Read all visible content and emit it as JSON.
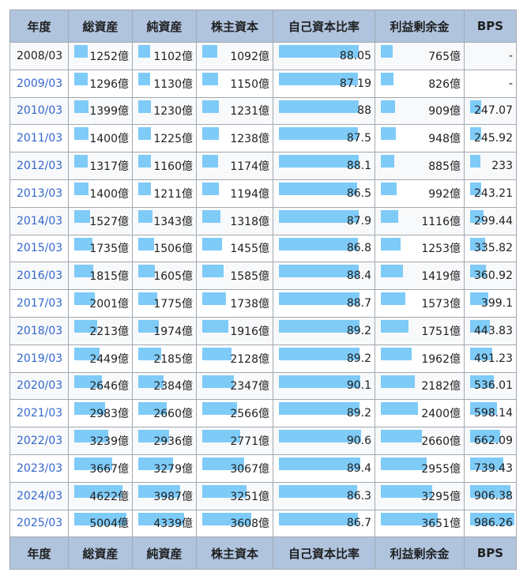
{
  "headers": [
    "年度",
    "総資産",
    "純資産",
    "株主資本",
    "自己資本比率",
    "利益剰余金",
    "BPS"
  ],
  "bar_color": "#7ecbf8",
  "header_bg": "#b0c4de",
  "rows": [
    {
      "year": "2008/03",
      "linked": false,
      "total_assets": "1252億",
      "net_assets": "1102億",
      "shareholders_equity": "1092億",
      "equity_ratio": "88.05",
      "retained_earnings": "765億",
      "bps": "-"
    },
    {
      "year": "2009/03",
      "linked": true,
      "total_assets": "1296億",
      "net_assets": "1130億",
      "shareholders_equity": "1150億",
      "equity_ratio": "87.19",
      "retained_earnings": "826億",
      "bps": "-"
    },
    {
      "year": "2010/03",
      "linked": true,
      "total_assets": "1399億",
      "net_assets": "1230億",
      "shareholders_equity": "1231億",
      "equity_ratio": "88",
      "retained_earnings": "909億",
      "bps": "247.07"
    },
    {
      "year": "2011/03",
      "linked": true,
      "total_assets": "1400億",
      "net_assets": "1225億",
      "shareholders_equity": "1238億",
      "equity_ratio": "87.5",
      "retained_earnings": "948億",
      "bps": "245.92"
    },
    {
      "year": "2012/03",
      "linked": true,
      "total_assets": "1317億",
      "net_assets": "1160億",
      "shareholders_equity": "1174億",
      "equity_ratio": "88.1",
      "retained_earnings": "885億",
      "bps": "233"
    },
    {
      "year": "2013/03",
      "linked": true,
      "total_assets": "1400億",
      "net_assets": "1211億",
      "shareholders_equity": "1194億",
      "equity_ratio": "86.5",
      "retained_earnings": "992億",
      "bps": "243.21"
    },
    {
      "year": "2014/03",
      "linked": true,
      "total_assets": "1527億",
      "net_assets": "1343億",
      "shareholders_equity": "1318億",
      "equity_ratio": "87.9",
      "retained_earnings": "1116億",
      "bps": "299.44"
    },
    {
      "year": "2015/03",
      "linked": true,
      "total_assets": "1735億",
      "net_assets": "1506億",
      "shareholders_equity": "1455億",
      "equity_ratio": "86.8",
      "retained_earnings": "1253億",
      "bps": "335.82"
    },
    {
      "year": "2016/03",
      "linked": true,
      "total_assets": "1815億",
      "net_assets": "1605億",
      "shareholders_equity": "1585億",
      "equity_ratio": "88.4",
      "retained_earnings": "1419億",
      "bps": "360.92"
    },
    {
      "year": "2017/03",
      "linked": true,
      "total_assets": "2001億",
      "net_assets": "1775億",
      "shareholders_equity": "1738億",
      "equity_ratio": "88.7",
      "retained_earnings": "1573億",
      "bps": "399.1"
    },
    {
      "year": "2018/03",
      "linked": true,
      "total_assets": "2213億",
      "net_assets": "1974億",
      "shareholders_equity": "1916億",
      "equity_ratio": "89.2",
      "retained_earnings": "1751億",
      "bps": "443.83"
    },
    {
      "year": "2019/03",
      "linked": true,
      "total_assets": "2449億",
      "net_assets": "2185億",
      "shareholders_equity": "2128億",
      "equity_ratio": "89.2",
      "retained_earnings": "1962億",
      "bps": "491.23"
    },
    {
      "year": "2020/03",
      "linked": true,
      "total_assets": "2646億",
      "net_assets": "2384億",
      "shareholders_equity": "2347億",
      "equity_ratio": "90.1",
      "retained_earnings": "2182億",
      "bps": "536.01"
    },
    {
      "year": "2021/03",
      "linked": true,
      "total_assets": "2983億",
      "net_assets": "2660億",
      "shareholders_equity": "2566億",
      "equity_ratio": "89.2",
      "retained_earnings": "2400億",
      "bps": "598.14"
    },
    {
      "year": "2022/03",
      "linked": true,
      "total_assets": "3239億",
      "net_assets": "2936億",
      "shareholders_equity": "2771億",
      "equity_ratio": "90.6",
      "retained_earnings": "2660億",
      "bps": "662.09"
    },
    {
      "year": "2023/03",
      "linked": true,
      "total_assets": "3667億",
      "net_assets": "3279億",
      "shareholders_equity": "3067億",
      "equity_ratio": "89.4",
      "retained_earnings": "2955億",
      "bps": "739.43"
    },
    {
      "year": "2024/03",
      "linked": true,
      "total_assets": "4622億",
      "net_assets": "3987億",
      "shareholders_equity": "3251億",
      "equity_ratio": "86.3",
      "retained_earnings": "3295億",
      "bps": "906.38"
    },
    {
      "year": "2025/03",
      "linked": true,
      "total_assets": "5004億",
      "net_assets": "4339億",
      "shareholders_equity": "3608億",
      "equity_ratio": "86.7",
      "retained_earnings": "3651億",
      "bps": "986.26"
    }
  ],
  "bar_scale_max": {
    "total_assets": 5004,
    "net_assets": 4339,
    "shareholders_equity": 3608,
    "equity_ratio": 90.6,
    "retained_earnings": 3651,
    "bps": 986.26
  }
}
